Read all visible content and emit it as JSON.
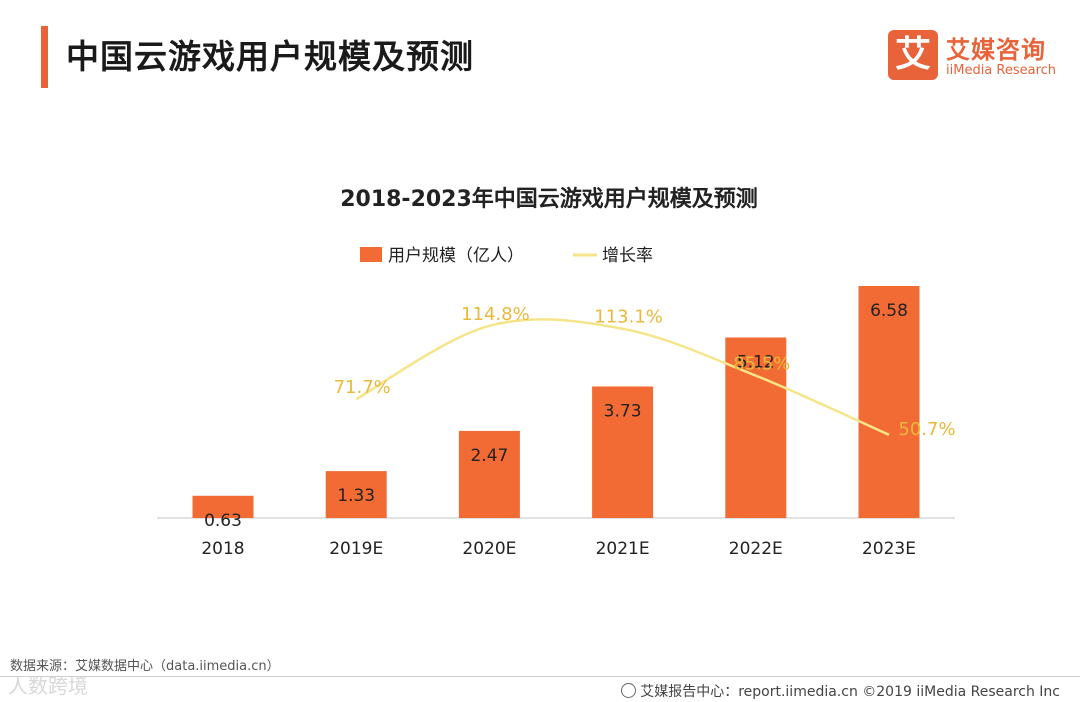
{
  "header": {
    "title": "中国云游戏用户规模及预测",
    "logo_mark": "艾",
    "logo_cn": "艾媒咨询",
    "logo_en": "iiMedia Research"
  },
  "footer": {
    "source": "数据来源：艾媒数据中心（data.iimedia.cn）",
    "credit": "艾媒报告中心：report.iimedia.cn ©2019  iiMedia Research  Inc",
    "watermark": "人数跨境"
  },
  "colors": {
    "accent": "#e8633a",
    "bar": "#f26b35",
    "line": "#f5e58a",
    "line_label": "#e8b93a"
  },
  "chart_data": {
    "type": "bar",
    "title": "2018-2023年中国云游戏用户规模及预测",
    "categories": [
      "2018",
      "2019E",
      "2020E",
      "2021E",
      "2022E",
      "2023E"
    ],
    "series": [
      {
        "name": "用户规模（亿人）",
        "type": "bar",
        "values": [
          0.63,
          1.33,
          2.47,
          3.73,
          5.12,
          6.58
        ],
        "labels": [
          "0.63",
          "1.33",
          "2.47",
          "3.73",
          "5.12",
          "6.58"
        ]
      },
      {
        "name": "增长率",
        "type": "line",
        "values": [
          null,
          71.7,
          114.8,
          113.1,
          85.5,
          50.7
        ],
        "labels": [
          "",
          "71.7%",
          "114.8%",
          "113.1%",
          "85.5%",
          "50.7%"
        ]
      }
    ],
    "ylim": [
      0,
      7
    ],
    "growth_ylim": [
      30,
      130
    ],
    "legend": "top-center",
    "grid": false
  }
}
